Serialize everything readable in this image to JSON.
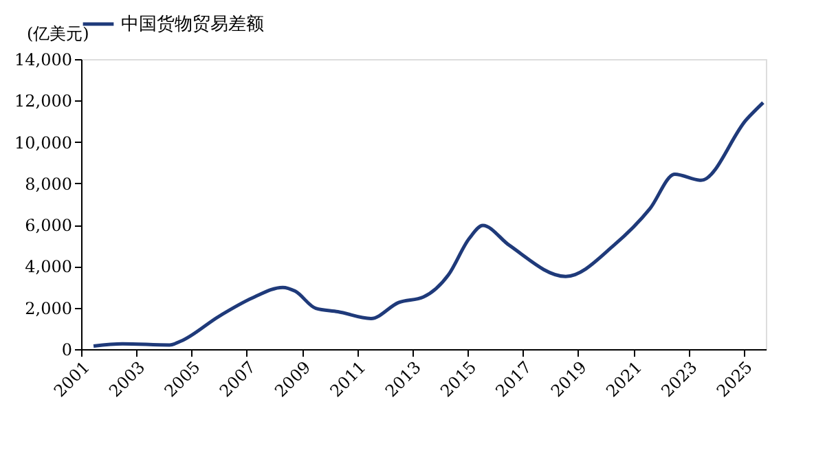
{
  "chart_data": {
    "type": "line",
    "ylabel": "(亿美元)",
    "legend": "top",
    "x": [
      2001.45,
      2002.5,
      2004.2,
      2004.6,
      2006.0,
      2007.2,
      2008.3,
      2008.75,
      2009.5,
      2010.3,
      2011.5,
      2012.5,
      2013.4,
      2014.3,
      2015.06,
      2015.55,
      2016.5,
      2018.55,
      2020.3,
      2021.6,
      2022.5,
      2023.45,
      2025.1,
      2025.7
    ],
    "series": [
      {
        "name": "中国货物贸易差额",
        "color": "#1f3a7a",
        "values": [
          150,
          260,
          200,
          380,
          1590,
          2470,
          2980,
          2800,
          1970,
          1810,
          1480,
          2250,
          2520,
          3580,
          5350,
          5970,
          5020,
          3510,
          5020,
          6780,
          8440,
          8150,
          11090,
          11900
        ]
      }
    ],
    "xlim": [
      2001,
      2025.8
    ],
    "xticks": [
      2001,
      2003,
      2005,
      2007,
      2009,
      2011,
      2013,
      2015,
      2017,
      2019,
      2021,
      2023,
      2025
    ],
    "ylim": [
      0,
      14000
    ],
    "yticks": [
      0,
      {
        "value": 2000,
        "label": "2,000"
      },
      {
        "value": 4000,
        "label": "4,000"
      },
      {
        "value": 6000,
        "label": "6,000"
      },
      {
        "value": 8000,
        "label": "8,000"
      },
      {
        "value": 10000,
        "label": "10,000"
      },
      {
        "value": 12000,
        "label": "12,000"
      },
      {
        "value": 14000,
        "label": "14,000"
      }
    ],
    "grid": false,
    "marker": "none",
    "line_style": "solid"
  }
}
